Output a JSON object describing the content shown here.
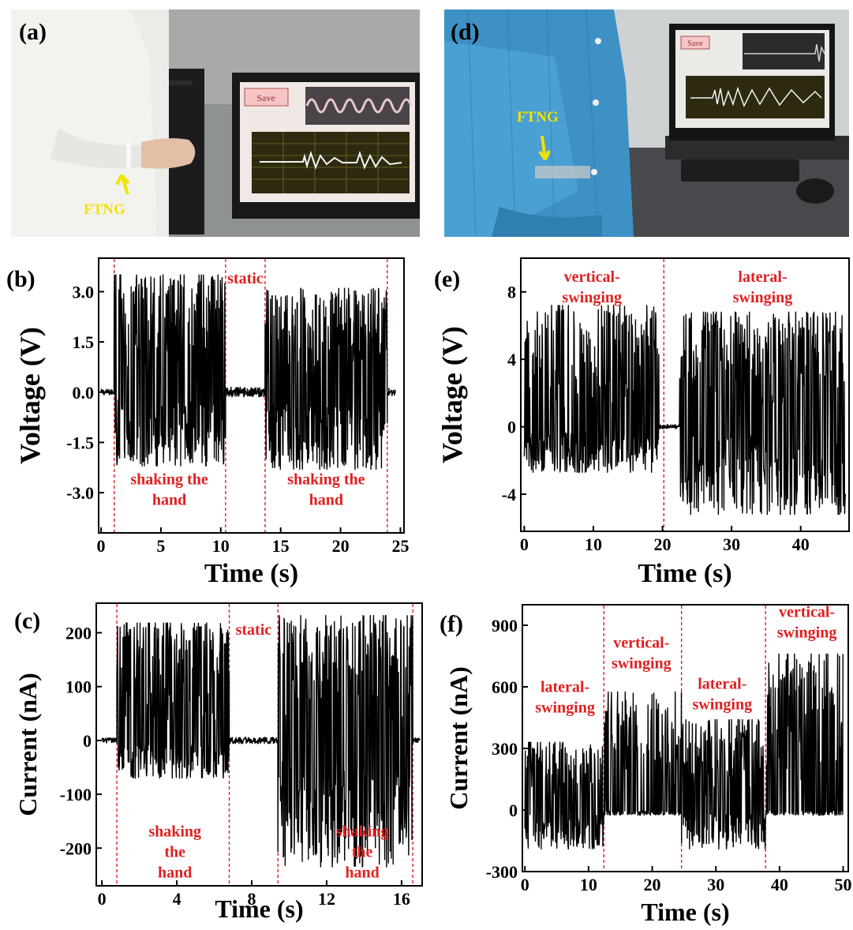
{
  "panels": {
    "a": {
      "label": "(a)",
      "photo_label": "FTNG"
    },
    "d": {
      "label": "(d)",
      "photo_label": "FTNG",
      "screen_button": "Save"
    },
    "a_screen_button": "Save"
  },
  "colors": {
    "trace": "#000000",
    "annotation": "#e02020",
    "photo_label": "#f2e200",
    "divider": "#e02020"
  },
  "chart_data": [
    {
      "id": "b",
      "label": "(b)",
      "type": "line",
      "xlabel": "Time (s)",
      "ylabel": "Voltage (V)",
      "xlim": [
        -0.2,
        25.3
      ],
      "ylim": [
        -4.2,
        4.0
      ],
      "xticks": [
        0,
        5,
        10,
        15,
        20,
        25
      ],
      "xtick_labels": [
        "0",
        "5",
        "10",
        "15",
        "20",
        "25"
      ],
      "yticks": [
        -3.0,
        -1.5,
        0.0,
        1.5,
        3.0
      ],
      "ytick_labels": [
        "-3.0",
        "-1.5",
        "0.0",
        "1.5",
        "3.0"
      ],
      "dividers": [
        1.1,
        10.4,
        13.7,
        23.9
      ],
      "segments": [
        {
          "start": 0.0,
          "end": 1.1,
          "state": "static",
          "pos_max": 0.15,
          "neg_max": -0.15
        },
        {
          "start": 1.1,
          "end": 10.4,
          "state": "active",
          "pos_max": 3.5,
          "neg_max": -2.2
        },
        {
          "start": 10.4,
          "end": 13.7,
          "state": "static",
          "pos_max": 0.25,
          "neg_max": -0.25
        },
        {
          "start": 13.7,
          "end": 23.9,
          "state": "active",
          "pos_max": 3.1,
          "neg_max": -2.3
        },
        {
          "start": 23.9,
          "end": 24.6,
          "state": "static",
          "pos_max": 0.2,
          "neg_max": -0.2
        }
      ],
      "annotations": [
        {
          "text": [
            "static"
          ],
          "x": 12.05,
          "y": 3.25
        },
        {
          "text": [
            "shaking the",
            "hand"
          ],
          "x": 5.7,
          "y": -2.75
        },
        {
          "text": [
            "shaking the",
            "hand"
          ],
          "x": 18.8,
          "y": -2.75
        }
      ]
    },
    {
      "id": "c",
      "label": "(c)",
      "type": "line",
      "xlabel": "Time (s)",
      "ylabel": "Current (nA)",
      "xlim": [
        -0.3,
        17.1
      ],
      "ylim": [
        -270,
        255
      ],
      "xticks": [
        0,
        4,
        8,
        12,
        16
      ],
      "xtick_labels": [
        "0",
        "4",
        "8",
        "12",
        "16"
      ],
      "yticks": [
        -200,
        -100,
        0,
        100,
        200
      ],
      "ytick_labels": [
        "-200",
        "-100",
        "0",
        "100",
        "200"
      ],
      "dividers": [
        0.8,
        6.8,
        9.4,
        16.6
      ],
      "segments": [
        {
          "start": 0.0,
          "end": 0.8,
          "state": "static",
          "pos_max": 8,
          "neg_max": -8
        },
        {
          "start": 0.8,
          "end": 6.8,
          "state": "active",
          "pos_max": 218,
          "neg_max": -70
        },
        {
          "start": 6.8,
          "end": 9.4,
          "state": "static",
          "pos_max": 10,
          "neg_max": -10
        },
        {
          "start": 9.4,
          "end": 16.6,
          "state": "active",
          "pos_max": 232,
          "neg_max": -235
        },
        {
          "start": 16.6,
          "end": 17.0,
          "state": "static",
          "pos_max": 8,
          "neg_max": -8
        }
      ],
      "annotations": [
        {
          "text": [
            "static"
          ],
          "x": 8.1,
          "y": 196
        },
        {
          "text": [
            "shaking",
            "the",
            "hand"
          ],
          "x": 3.9,
          "y": -178
        },
        {
          "text": [
            "shaking",
            "the",
            "hand"
          ],
          "x": 13.9,
          "y": -178
        }
      ]
    },
    {
      "id": "e",
      "label": "(e)",
      "type": "line",
      "xlabel": "Time (s)",
      "ylabel": "Voltage (V)",
      "xlim": [
        -0.5,
        47.0
      ],
      "ylim": [
        -6.2,
        10.0
      ],
      "xticks": [
        0,
        10,
        20,
        30,
        40
      ],
      "xtick_labels": [
        "0",
        "10",
        "20",
        "30",
        "40"
      ],
      "yticks": [
        -4,
        0,
        4,
        8
      ],
      "ytick_labels": [
        "-4",
        "0",
        "4",
        "8"
      ],
      "dividers": [
        20.2
      ],
      "segments": [
        {
          "start": 0.0,
          "end": 19.5,
          "state": "active",
          "pos_max": 7.2,
          "neg_max": -2.7
        },
        {
          "start": 19.5,
          "end": 22.5,
          "state": "static",
          "pos_max": 0.2,
          "neg_max": -0.2
        },
        {
          "start": 22.5,
          "end": 46.5,
          "state": "active",
          "pos_max": 6.8,
          "neg_max": -5.2
        }
      ],
      "annotations": [
        {
          "text": [
            "vertical-",
            "swinging"
          ],
          "x": 9.8,
          "y": 8.6
        },
        {
          "text": [
            "lateral-",
            "swinging"
          ],
          "x": 34.5,
          "y": 8.6
        }
      ]
    },
    {
      "id": "f",
      "label": "(f)",
      "type": "line",
      "xlabel": "Time (s)",
      "ylabel": "Current (nA)",
      "xlim": [
        -0.4,
        50.8
      ],
      "ylim": [
        -300,
        1000
      ],
      "xticks": [
        0,
        10,
        20,
        30,
        40,
        50
      ],
      "xtick_labels": [
        "0",
        "10",
        "20",
        "30",
        "40",
        "50"
      ],
      "yticks": [
        -300,
        0,
        300,
        600,
        900
      ],
      "ytick_labels": [
        "-300",
        "0",
        "300",
        "600",
        "900"
      ],
      "dividers": [
        12.4,
        24.6,
        37.8
      ],
      "segments": [
        {
          "start": 0.0,
          "end": 12.4,
          "state": "active",
          "pos_max": 330,
          "neg_max": -190
        },
        {
          "start": 12.4,
          "end": 24.6,
          "state": "active",
          "pos_max": 575,
          "neg_max": -25
        },
        {
          "start": 24.6,
          "end": 37.8,
          "state": "active",
          "pos_max": 440,
          "neg_max": -190
        },
        {
          "start": 37.8,
          "end": 50.0,
          "state": "active",
          "pos_max": 760,
          "neg_max": -25
        }
      ],
      "annotations": [
        {
          "text": [
            "lateral-",
            "swinging"
          ],
          "x": 6.3,
          "y": 575
        },
        {
          "text": [
            "vertical-",
            "swinging"
          ],
          "x": 18.3,
          "y": 790
        },
        {
          "text": [
            "lateral-",
            "swinging"
          ],
          "x": 31.0,
          "y": 590
        },
        {
          "text": [
            "vertical-",
            "swinging"
          ],
          "x": 44.3,
          "y": 940
        }
      ]
    }
  ]
}
